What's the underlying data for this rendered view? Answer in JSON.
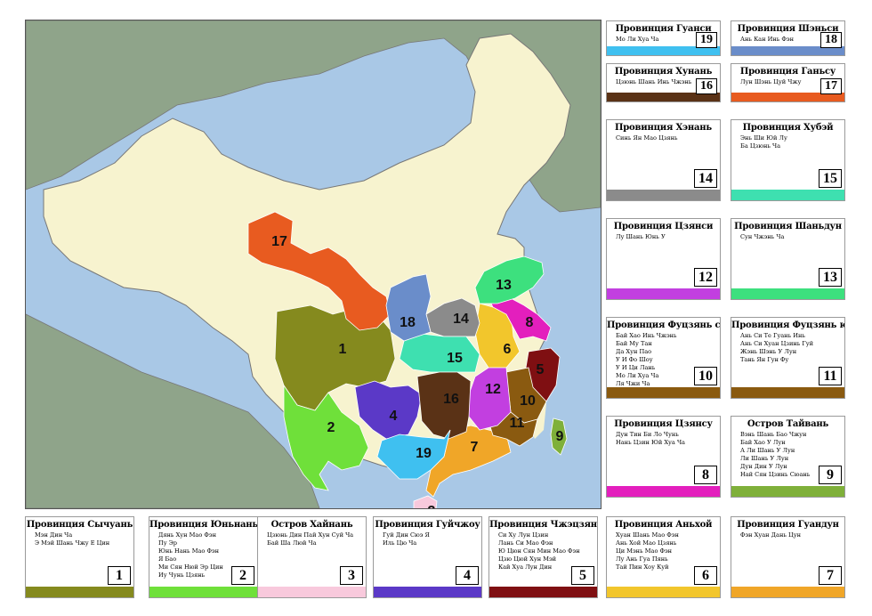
{
  "map": {
    "colors": {
      "sea": "#a9c8e6",
      "land": "#8fa48a",
      "china": "#f7f3cf",
      "border": "#777777"
    },
    "provinces": [
      {
        "num": "1",
        "color": "#858a1e"
      },
      {
        "num": "2",
        "color": "#6fe03a"
      },
      {
        "num": "3",
        "color": "#f8c9dc"
      },
      {
        "num": "4",
        "color": "#5b39c7"
      },
      {
        "num": "5",
        "color": "#7f0f12"
      },
      {
        "num": "6",
        "color": "#f2c62c"
      },
      {
        "num": "7",
        "color": "#f0a628"
      },
      {
        "num": "8",
        "color": "#e31fbd"
      },
      {
        "num": "9",
        "color": "#7fb03a"
      },
      {
        "num": "10",
        "color": "#8a5a10"
      },
      {
        "num": "11",
        "color": "#8a5a10"
      },
      {
        "num": "12",
        "color": "#c23fe0"
      },
      {
        "num": "13",
        "color": "#3de07e"
      },
      {
        "num": "14",
        "color": "#8b8b8b"
      },
      {
        "num": "15",
        "color": "#3ee0b0"
      },
      {
        "num": "16",
        "color": "#5a3216"
      },
      {
        "num": "17",
        "color": "#e85b20"
      },
      {
        "num": "18",
        "color": "#6a8dca"
      },
      {
        "num": "19",
        "color": "#3fc0f0"
      }
    ]
  },
  "cards": [
    {
      "id": "19",
      "title": "Провинция Гуанси",
      "lines": [
        "Мо Ли Хуа Ча"
      ],
      "color": "#3fc0f0"
    },
    {
      "id": "18",
      "title": "Провинция Шэньси",
      "lines": [
        "Ань Кан Инь Фэн"
      ],
      "color": "#6a8dca"
    },
    {
      "id": "16",
      "title": "Провинция Хунань",
      "lines": [
        "Цзюнь Шань Инь Чжэнь"
      ],
      "color": "#5a3216"
    },
    {
      "id": "17",
      "title": "Провинция Ганьсу",
      "lines": [
        "Лун Шэнь Цуй Чжу"
      ],
      "color": "#e85b20"
    },
    {
      "id": "14",
      "title": "Провинция Хэнань",
      "lines": [
        "Синь Ян Мао Цзянь"
      ],
      "color": "#8b8b8b"
    },
    {
      "id": "15",
      "title": "Провинция Хубэй",
      "lines": [
        "Энь Ши Юй Лу",
        "Ба Цзюнь Ча"
      ],
      "color": "#3ee0b0"
    },
    {
      "id": "12",
      "title": "Провинция Цзянси",
      "lines": [
        "Лу Шань Юнь У"
      ],
      "color": "#c23fe0"
    },
    {
      "id": "13",
      "title": "Провинция Шаньдун",
      "lines": [
        "Сун Чжэнь Ча"
      ],
      "color": "#3de07e"
    },
    {
      "id": "10",
      "title": "Провинция Фуцзянь север",
      "lines": [
        "Бай Хао Инь Чжэнь",
        "Бай Му Тан",
        "Да Хун Пао",
        "У И Фо Шоу",
        "У И Ци Лань",
        "Мо Ли Хуа Ча",
        "Ля Чжи Ча"
      ],
      "color": "#8a5a10"
    },
    {
      "id": "11",
      "title": "Провинция Фуцзянь юг",
      "lines": [
        "Ань Си Те Гуань Инь",
        "Ань Си Хуан Цзинь Гуй",
        "Жэнь Шэнь У Лун",
        "Тань Ян Гун Фу"
      ],
      "color": "#8a5a10"
    },
    {
      "id": "8",
      "title": "Провинция Цзянсу",
      "lines": [
        "Дун Тин Би Ло Чунь",
        "Нань Цзин Юй Хуа Ча"
      ],
      "color": "#e31fbd"
    },
    {
      "id": "9",
      "title": "Остров Тайвань",
      "lines": [
        "Вэнь Шань Бао Чжун",
        "Бай Хао У Лун",
        "А Ли Шань У Лун",
        "Ли Шань У Лун",
        "Дун Дин У Лун",
        "Най Сян Цзинь Сюань"
      ],
      "color": "#7fb03a"
    },
    {
      "id": "1",
      "title": "Провинция Сычуань",
      "lines": [
        "Мэн Дин Ча",
        "Э Мэй Шань Чжу Е Цин"
      ],
      "color": "#858a1e"
    },
    {
      "id": "2",
      "title": "Провинция Юньнань",
      "lines": [
        "Дянь Хун Мао Фэн",
        "Пу Эр",
        "Юнь Нань Мао Фэн",
        "Я Бао",
        "Ми Сян Нюй Эр Цин",
        "Иу Чунь Цзянь"
      ],
      "color": "#6fe03a"
    },
    {
      "id": "3",
      "title": "Остров Хайнань",
      "lines": [
        "Цзюнь Дин Пай Хун Суй Ча",
        "Бай Ша Люй Ча"
      ],
      "color": "#f8c9dc"
    },
    {
      "id": "4",
      "title": "Провинция Гуйчжоу",
      "lines": [
        "Гуй Дин Сюэ Я",
        "Иль Цю Ча"
      ],
      "color": "#5b39c7"
    },
    {
      "id": "5",
      "title": "Провинция Чжэцзян",
      "lines": [
        "Си Ху Лун Цзин",
        "Лань Си Мао Фэн",
        "Ю Цюн Сян Мин Мао Фэн",
        "Цзю Цюй Хун Мэй",
        "Кай Хуа Лун Дин"
      ],
      "color": "#7f0f12"
    },
    {
      "id": "6",
      "title": "Провинция Аньхой",
      "lines": [
        "Хуан Шань Мао Фэн",
        "Ань Хой Мао Цзянь",
        "Ци Мэнь Мао Фэн",
        "Лу Ань Гуа Пянь",
        "Тай Пин Хоу Куй"
      ],
      "color": "#f2c62c"
    },
    {
      "id": "7",
      "title": "Провинция Гуандун",
      "lines": [
        "Фэн Хуан Дань Цун"
      ],
      "color": "#f0a628"
    }
  ]
}
